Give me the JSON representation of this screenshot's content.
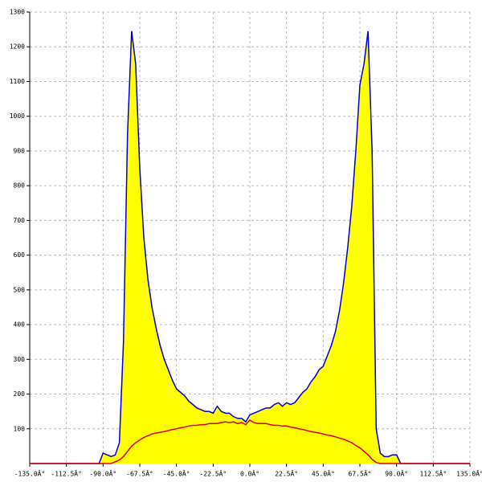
{
  "chart_data": {
    "type": "area",
    "x": [
      -135,
      -92.5,
      -90,
      -87.5,
      -85,
      -82.5,
      -80,
      -77.5,
      -75,
      -72.5,
      -70,
      -67.5,
      -65,
      -62.5,
      -60,
      -57.5,
      -55,
      -52.5,
      -50,
      -47.5,
      -45,
      -42.5,
      -40,
      -37.5,
      -35,
      -32.5,
      -30,
      -27.5,
      -25,
      -22.5,
      -20,
      -17.5,
      -15,
      -12.5,
      -10,
      -7.5,
      -5,
      -2.5,
      0,
      2.5,
      5,
      7.5,
      10,
      12.5,
      15,
      17.5,
      20,
      22.5,
      25,
      27.5,
      30,
      32.5,
      35,
      37.5,
      40,
      42.5,
      45,
      47.5,
      50,
      52.5,
      55,
      57.5,
      60,
      62.5,
      65,
      67.5,
      70,
      72.5,
      75,
      77.5,
      80,
      82.5,
      85,
      87.5,
      90,
      92.5,
      135
    ],
    "series": [
      {
        "color": "#0000cc",
        "fill": "#ffff00",
        "values": [
          0,
          0,
          30,
          25,
          20,
          25,
          60,
          350,
          950,
          1245,
          1150,
          850,
          650,
          530,
          450,
          390,
          340,
          300,
          270,
          240,
          215,
          205,
          195,
          180,
          170,
          160,
          155,
          150,
          150,
          145,
          165,
          150,
          145,
          145,
          135,
          130,
          130,
          120,
          140,
          145,
          150,
          155,
          160,
          160,
          170,
          175,
          165,
          175,
          170,
          175,
          190,
          205,
          215,
          235,
          250,
          270,
          280,
          310,
          340,
          380,
          440,
          520,
          620,
          740,
          900,
          1090,
          1150,
          1245,
          900,
          100,
          30,
          20,
          20,
          25,
          25,
          0,
          0
        ]
      },
      {
        "color": "#dd0000",
        "values": [
          0,
          0,
          0,
          0,
          0,
          5,
          10,
          20,
          35,
          50,
          60,
          68,
          75,
          80,
          85,
          88,
          90,
          92,
          95,
          98,
          100,
          103,
          105,
          108,
          110,
          110,
          112,
          112,
          115,
          115,
          115,
          118,
          120,
          118,
          120,
          115,
          118,
          112,
          125,
          118,
          115,
          115,
          115,
          112,
          110,
          110,
          108,
          108,
          105,
          103,
          100,
          98,
          95,
          92,
          90,
          88,
          85,
          82,
          80,
          77,
          73,
          70,
          65,
          60,
          52,
          45,
          35,
          25,
          12,
          3,
          0,
          0,
          0,
          0,
          0,
          0,
          0
        ]
      }
    ],
    "xlim": [
      -135,
      135
    ],
    "ylim": [
      0,
      1300
    ],
    "xticks": [
      {
        "value": -135,
        "label": "-135.0Â°"
      },
      {
        "value": -112.5,
        "label": "-112.5Â°"
      },
      {
        "value": -90,
        "label": "-90.0Â°"
      },
      {
        "value": -67.5,
        "label": "-67.5Â°"
      },
      {
        "value": -45,
        "label": "-45.0Â°"
      },
      {
        "value": -22.5,
        "label": "-22.5Â°"
      },
      {
        "value": 0,
        "label": "0.0Â°"
      },
      {
        "value": 22.5,
        "label": "22.5Â°"
      },
      {
        "value": 45,
        "label": "45.0Â°"
      },
      {
        "value": 67.5,
        "label": "67.5Â°"
      },
      {
        "value": 90,
        "label": "90.0Â°"
      },
      {
        "value": 112.5,
        "label": "112.5Â°"
      },
      {
        "value": 135,
        "label": "135.0Â°"
      }
    ],
    "yticks": [
      100,
      200,
      300,
      400,
      500,
      600,
      700,
      800,
      900,
      1000,
      1100,
      1200,
      1300
    ],
    "grid": true
  }
}
